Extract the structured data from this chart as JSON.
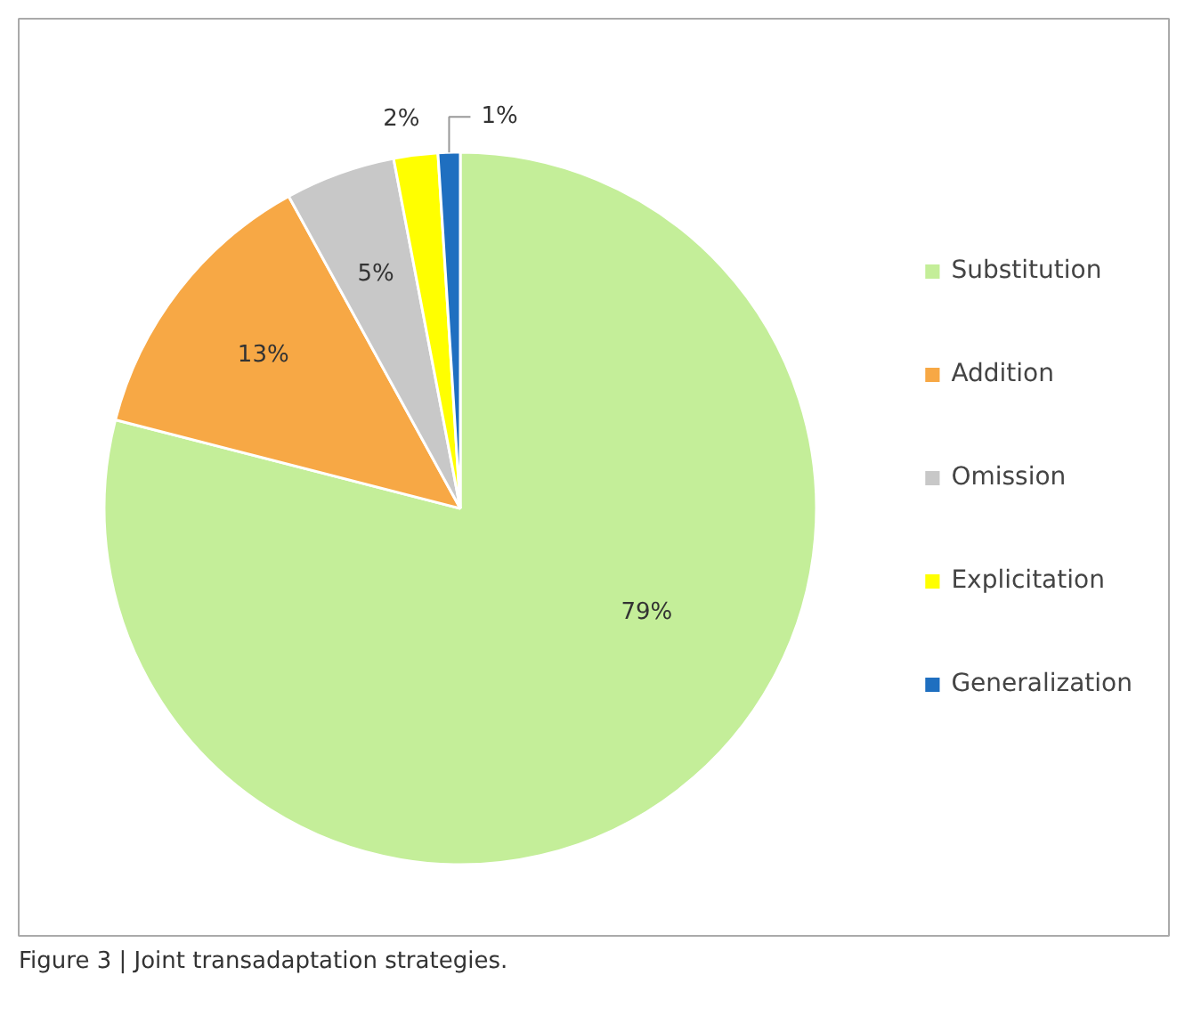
{
  "chart_data": {
    "type": "pie",
    "categories": [
      "Substitution",
      "Addition",
      "Omission",
      "Explicitation",
      "Generalization"
    ],
    "values": [
      79,
      13,
      5,
      2,
      1
    ],
    "colors": [
      "#c4ee99",
      "#f7a845",
      "#c8c8c8",
      "#ffff00",
      "#1f6fc0"
    ],
    "value_labels": [
      "79%",
      "13%",
      "5%",
      "2%",
      "1%"
    ],
    "legend": "right",
    "annotations": [
      "Figure 3 | Joint transadaptation strategies."
    ]
  }
}
